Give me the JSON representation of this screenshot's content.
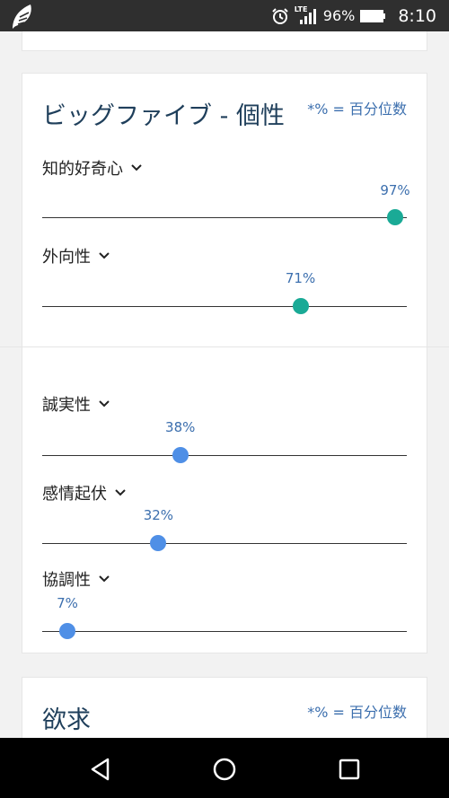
{
  "status_bar": {
    "network": "LTE",
    "battery": "96%",
    "time": "8:10"
  },
  "big_five": {
    "title": "ビッグファイブ - 個性",
    "note": "*% = 百分位数",
    "accent_high": "#1aaa96",
    "accent_low": "#4f8fe6",
    "traits": [
      {
        "label": "知的好奇心",
        "value": 97,
        "display": "97%"
      },
      {
        "label": "外向性",
        "value": 71,
        "display": "71%"
      },
      {
        "label": "誠実性",
        "value": 38,
        "display": "38%"
      },
      {
        "label": "感情起伏",
        "value": 32,
        "display": "32%"
      },
      {
        "label": "協調性",
        "value": 7,
        "display": "7%"
      }
    ]
  },
  "needs": {
    "title": "欲求",
    "note": "*% = 百分位数"
  },
  "icons": {
    "app": "feather-logo-icon",
    "alarm": "alarm-icon",
    "signal": "signal-icon",
    "battery": "battery-icon",
    "back": "back-icon",
    "home": "home-icon",
    "recents": "recents-icon",
    "chevron": "chevron-down-icon"
  }
}
